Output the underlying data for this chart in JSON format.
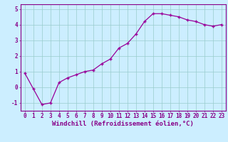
{
  "x": [
    0,
    1,
    2,
    3,
    4,
    5,
    6,
    7,
    8,
    9,
    10,
    11,
    12,
    13,
    14,
    15,
    16,
    17,
    18,
    19,
    20,
    21,
    22,
    23
  ],
  "y": [
    0.9,
    -0.1,
    -1.1,
    -1.0,
    0.3,
    0.6,
    0.8,
    1.0,
    1.1,
    1.5,
    1.8,
    2.5,
    2.8,
    3.4,
    4.2,
    4.7,
    4.7,
    4.6,
    4.5,
    4.3,
    4.2,
    4.0,
    3.9,
    4.0
  ],
  "line_color": "#990099",
  "marker": "+",
  "bg_color": "#cceeff",
  "grid_color": "#99cccc",
  "xlabel": "Windchill (Refroidissement éolien,°C)",
  "xlim": [
    -0.5,
    23.5
  ],
  "ylim": [
    -1.5,
    5.3
  ],
  "yticks": [
    -1,
    0,
    1,
    2,
    3,
    4,
    5
  ],
  "xticks": [
    0,
    1,
    2,
    3,
    4,
    5,
    6,
    7,
    8,
    9,
    10,
    11,
    12,
    13,
    14,
    15,
    16,
    17,
    18,
    19,
    20,
    21,
    22,
    23
  ],
  "axis_color": "#880088",
  "label_fontsize": 6.5,
  "tick_fontsize": 5.5
}
